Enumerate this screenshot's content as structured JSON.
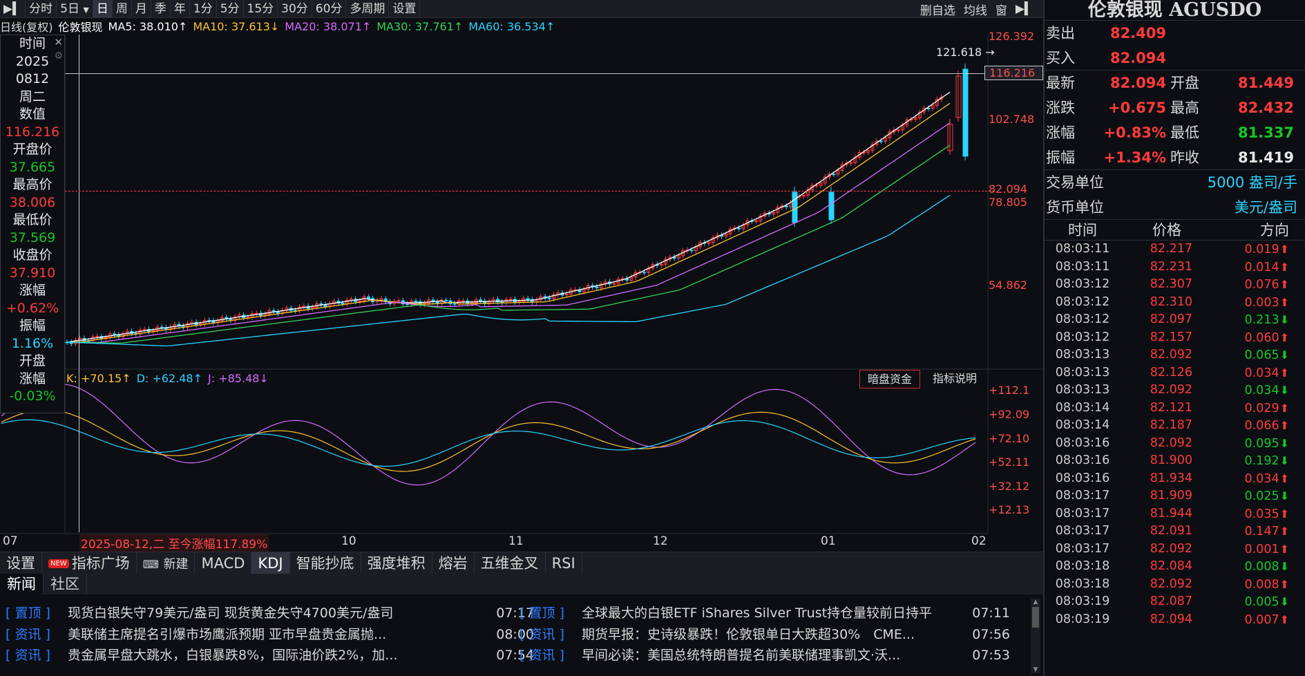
{
  "toolbar": {
    "items": [
      "分时",
      "5日",
      "日",
      "周",
      "月",
      "季",
      "年",
      "1分",
      "5分",
      "15分",
      "30分",
      "60分",
      "多周期",
      "设置"
    ],
    "active_index": 2,
    "right_items": [
      "删自选",
      "均线",
      "窗"
    ]
  },
  "ma_bar": {
    "mode": "日线(复权)",
    "name": "伦敦银现",
    "ma5": "MA5: 38.010↑",
    "ma10": "MA10: 37.613↓",
    "ma20": "MA20: 38.071↑",
    "ma30": "MA30: 37.761↑",
    "ma60": "MA60: 36.534↑"
  },
  "info_panel": {
    "time_label": "时间",
    "year": "2025",
    "date": "0812",
    "weekday": "周二",
    "value_label": "数值",
    "value": "116.216",
    "open_label": "开盘价",
    "open": "37.665",
    "high_label": "最高价",
    "high": "38.006",
    "low_label": "最低价",
    "low": "37.569",
    "close_label": "收盘价",
    "close": "37.910",
    "change_label": "涨幅",
    "change": "+0.62%",
    "amp_label": "振幅",
    "amp": "1.16%",
    "open_change_label": "开盘涨幅",
    "open_change_1": "开盘",
    "open_change_2": "涨幅",
    "open_change": "-0.03%"
  },
  "price_axis": [
    "126.392",
    "116.216",
    "102.748",
    "82.094",
    "78.805",
    "54.862"
  ],
  "kdj_axis": [
    "+112.1",
    "+92.09",
    "+72.10",
    "+52.11",
    "+32.12",
    "+12.13"
  ],
  "high_marker": "121.618",
  "kdj_bar": {
    "k": "K: +70.15↑",
    "d": "D: +62.48↑",
    "j": "J: +85.48↓",
    "dark_fund": "暗盘资金",
    "indicator_help": "指标说明"
  },
  "x_axis": {
    "labels": [
      "07",
      "10",
      "11",
      "12",
      "01",
      "02"
    ],
    "range_note": "2025-08-12,二 至今涨幅117.89%"
  },
  "indicator_tabs": {
    "settings": "设置",
    "new_badge": "NEW",
    "plaza": "指标广场",
    "create": "新建",
    "tabs": [
      "MACD",
      "KDJ",
      "智能抄底",
      "强度堆积",
      "熔岩",
      "五维金叉",
      "RSI"
    ],
    "active": "KDJ"
  },
  "news_tabs": [
    "新闻",
    "社区"
  ],
  "news_left": [
    {
      "cat": "[ 置顶 ]",
      "title": "现货白银失守79美元/盎司 现货黄金失守4700美元/盎司",
      "time": "07:17"
    },
    {
      "cat": "[ 资讯 ]",
      "title": "美联储主席提名引爆市场鹰派预期 亚市早盘贵金属抛...",
      "time": "08:00"
    },
    {
      "cat": "[ 资讯 ]",
      "title": "贵金属早盘大跳水，白银暴跌8%，国际油价跌2%，加...",
      "time": "07:54"
    }
  ],
  "news_right": [
    {
      "cat": "[ 置顶 ]",
      "title": "全球最大的白银ETF iShares Silver Trust持仓量较前日持平",
      "time": "07:11"
    },
    {
      "cat": "[ 资讯 ]",
      "title": "期货早报：史诗级暴跌！伦敦银单日大跌超30%　CME...",
      "time": "07:56"
    },
    {
      "cat": "[ 资讯 ]",
      "title": "早间必读：美国总统特朗普提名前美联储理事凯文·沃...",
      "time": "07:53"
    }
  ],
  "quote": {
    "title": "伦敦银现 AGUSDO",
    "sell_label": "卖出",
    "sell": "82.409",
    "buy_label": "买入",
    "buy": "82.094",
    "last_label": "最新",
    "last": "82.094",
    "open_label": "开盘",
    "open": "81.449",
    "chg_label": "涨跌",
    "chg": "+0.675",
    "high_label": "最高",
    "high": "82.432",
    "pct_label": "涨幅",
    "pct": "+0.83%",
    "low_label": "最低",
    "low": "81.337",
    "amp_label": "振幅",
    "amp": "+1.34%",
    "prev_label": "昨收",
    "prev": "81.419",
    "unit_label": "交易单位",
    "unit": "5000 盎司/手",
    "currency_label": "货币单位",
    "currency": "美元/盎司"
  },
  "ticks_header": [
    "时间",
    "价格",
    "方向"
  ],
  "ticks": [
    {
      "t": "08:03:11",
      "p": "82.217",
      "d": "0.019",
      "up": true
    },
    {
      "t": "08:03:11",
      "p": "82.231",
      "d": "0.014",
      "up": true
    },
    {
      "t": "08:03:12",
      "p": "82.307",
      "d": "0.076",
      "up": true
    },
    {
      "t": "08:03:12",
      "p": "82.310",
      "d": "0.003",
      "up": true
    },
    {
      "t": "08:03:12",
      "p": "82.097",
      "d": "0.213",
      "up": false
    },
    {
      "t": "08:03:12",
      "p": "82.157",
      "d": "0.060",
      "up": true
    },
    {
      "t": "08:03:13",
      "p": "82.092",
      "d": "0.065",
      "up": false
    },
    {
      "t": "08:03:13",
      "p": "82.126",
      "d": "0.034",
      "up": true
    },
    {
      "t": "08:03:13",
      "p": "82.092",
      "d": "0.034",
      "up": false
    },
    {
      "t": "08:03:14",
      "p": "82.121",
      "d": "0.029",
      "up": true
    },
    {
      "t": "08:03:14",
      "p": "82.187",
      "d": "0.066",
      "up": true
    },
    {
      "t": "08:03:16",
      "p": "82.092",
      "d": "0.095",
      "up": false
    },
    {
      "t": "08:03:16",
      "p": "81.900",
      "d": "0.192",
      "up": false
    },
    {
      "t": "08:03:16",
      "p": "81.934",
      "d": "0.034",
      "up": true
    },
    {
      "t": "08:03:17",
      "p": "81.909",
      "d": "0.025",
      "up": false
    },
    {
      "t": "08:03:17",
      "p": "81.944",
      "d": "0.035",
      "up": true
    },
    {
      "t": "08:03:17",
      "p": "82.091",
      "d": "0.147",
      "up": true
    },
    {
      "t": "08:03:17",
      "p": "82.092",
      "d": "0.001",
      "up": true
    },
    {
      "t": "08:03:18",
      "p": "82.084",
      "d": "0.008",
      "up": false
    },
    {
      "t": "08:03:18",
      "p": "82.092",
      "d": "0.008",
      "up": true
    },
    {
      "t": "08:03:19",
      "p": "82.087",
      "d": "0.005",
      "up": false
    },
    {
      "t": "08:03:19",
      "p": "82.094",
      "d": "0.007",
      "up": true
    }
  ],
  "colors": {
    "up": "#ff3b3b",
    "down": "#16c62a",
    "ma5": "#ffffff",
    "ma10": "#ffc232",
    "ma20": "#d36cff",
    "ma30": "#36d05a",
    "ma60": "#2ad4ff"
  }
}
